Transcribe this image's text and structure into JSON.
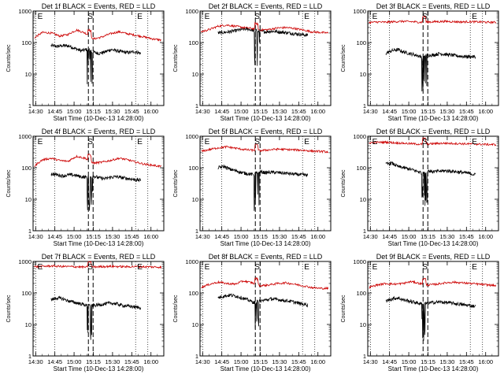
{
  "figure": {
    "x_tick_labels": [
      "14:30",
      "14:45",
      "15:00",
      "15:15",
      "15:30",
      "15:45",
      "16:00"
    ],
    "y_tick_labels": [
      "1",
      "10",
      "100",
      "1000"
    ]
  },
  "chart_data": [
    {
      "type": "line",
      "title": "Det 1f BLACK = Events, RED = LLD",
      "xlabel": "Start Time (10-Dec-13 14:28:00)",
      "ylabel": "Counts/sec",
      "ylog": true,
      "ylim": [
        1,
        1000
      ],
      "xlim": [
        "14:28",
        "16:10"
      ],
      "series": [
        {
          "color": "#000000",
          "values": [
            80,
            75,
            80,
            78,
            65,
            55,
            60,
            50,
            45,
            50,
            60,
            55,
            50,
            48,
            52,
            45
          ]
        },
        {
          "color": "#cc0000",
          "values": [
            140,
            210,
            200,
            160,
            180,
            250,
            200,
            130,
            150,
            190,
            220,
            190,
            170,
            150,
            130,
            120
          ]
        }
      ],
      "markers": {
        "S_x": "15:13",
        "F_x": "15:13",
        "E_left_x": "14:29",
        "E_right_x": "15:48"
      }
    },
    {
      "type": "line",
      "title": "Det 2f BLACK = Events, RED = LLD",
      "xlabel": "Start Time (10-Dec-13 14:28:00)",
      "ylabel": "Counts/sec",
      "ylog": true,
      "ylim": [
        1,
        1000
      ],
      "xlim": [
        "14:28",
        "16:10"
      ],
      "series": [
        {
          "color": "#000000",
          "values": [
            200,
            210,
            220,
            240,
            260,
            270,
            240,
            230,
            220,
            230,
            220,
            210,
            200,
            190,
            180,
            170
          ]
        },
        {
          "color": "#cc0000",
          "values": [
            220,
            260,
            330,
            360,
            330,
            300,
            280,
            250,
            260,
            290,
            300,
            280,
            250,
            220,
            210,
            200
          ]
        }
      ],
      "markers": {
        "S_x": "15:13",
        "F_x": "15:13",
        "E_left_x": "14:29",
        "E_right_x": "15:48"
      }
    },
    {
      "type": "line",
      "title": "Det 3f BLACK = Events, RED = LLD",
      "xlabel": "Start Time (10-Dec-13 14:28:00)",
      "ylabel": "Counts/sec",
      "ylog": true,
      "ylim": [
        1,
        1000
      ],
      "xlim": [
        "14:28",
        "16:10"
      ],
      "series": [
        {
          "color": "#000000",
          "values": [
            45,
            55,
            60,
            50,
            45,
            40,
            35,
            40,
            40,
            45,
            42,
            40,
            38,
            36,
            36,
            35
          ]
        },
        {
          "color": "#cc0000",
          "values": [
            430,
            450,
            440,
            460,
            470,
            460,
            440,
            450,
            460,
            470,
            460,
            450,
            460,
            450,
            440,
            440
          ]
        }
      ],
      "markers": {
        "S_x": "15:13",
        "F_x": "15:13",
        "E_left_x": "14:29",
        "E_right_x": "15:48"
      }
    },
    {
      "type": "line",
      "title": "Det 4f BLACK = Events, RED = LLD",
      "xlabel": "Start Time (10-Dec-13 14:28:00)",
      "ylabel": "Counts/sec",
      "ylog": true,
      "ylim": [
        1,
        1000
      ],
      "xlim": [
        "14:28",
        "16:10"
      ],
      "series": [
        {
          "color": "#000000",
          "values": [
            65,
            60,
            55,
            60,
            58,
            52,
            50,
            55,
            48,
            45,
            50,
            52,
            48,
            45,
            42,
            40
          ]
        },
        {
          "color": "#cc0000",
          "values": [
            110,
            180,
            200,
            170,
            160,
            230,
            200,
            140,
            150,
            170,
            200,
            180,
            150,
            130,
            120,
            110
          ]
        }
      ],
      "markers": {
        "S_x": "15:13",
        "F_x": "15:13",
        "E_left_x": "14:29",
        "E_right_x": "15:48"
      }
    },
    {
      "type": "line",
      "title": "Det 5f BLACK = Events, RED = LLD",
      "xlabel": "Start Time (10-Dec-13 14:28:00)",
      "ylabel": "Counts/sec",
      "ylog": true,
      "ylim": [
        1,
        1000
      ],
      "xlim": [
        "14:28",
        "16:10"
      ],
      "series": [
        {
          "color": "#000000",
          "values": [
            100,
            110,
            90,
            80,
            70,
            65,
            60,
            75,
            70,
            72,
            70,
            68,
            65,
            62,
            60,
            58
          ]
        },
        {
          "color": "#cc0000",
          "values": [
            330,
            380,
            430,
            460,
            420,
            380,
            360,
            350,
            370,
            390,
            380,
            370,
            360,
            340,
            330,
            320
          ]
        }
      ],
      "markers": {
        "S_x": "15:13",
        "F_x": "15:13",
        "E_left_x": "14:29",
        "E_right_x": "15:48"
      }
    },
    {
      "type": "line",
      "title": "Det 6f BLACK = Events, RED = LLD",
      "xlabel": "Start Time (10-Dec-13 14:28:00)",
      "ylabel": "Counts/sec",
      "ylog": true,
      "ylim": [
        1,
        1000
      ],
      "xlim": [
        "14:28",
        "16:10"
      ],
      "series": [
        {
          "color": "#000000",
          "values": [
            130,
            140,
            110,
            100,
            90,
            80,
            70,
            80,
            75,
            78,
            80,
            78,
            74,
            70,
            66,
            60
          ]
        },
        {
          "color": "#cc0000",
          "values": [
            620,
            640,
            650,
            620,
            600,
            580,
            560,
            570,
            590,
            600,
            590,
            580,
            570,
            560,
            550,
            540
          ]
        }
      ],
      "markers": {
        "S_x": "15:13",
        "F_x": "15:13",
        "E_left_x": "14:29",
        "E_right_x": "15:48"
      }
    },
    {
      "type": "line",
      "title": "Det 7f BLACK = Events, RED = LLD",
      "xlabel": "Start Time (10-Dec-13 14:28:00)",
      "ylabel": "Counts/sec",
      "ylog": true,
      "ylim": [
        1,
        1000
      ],
      "xlim": [
        "14:28",
        "16:10"
      ],
      "series": [
        {
          "color": "#000000",
          "values": [
            60,
            70,
            65,
            55,
            50,
            45,
            40,
            40,
            42,
            45,
            48,
            45,
            40,
            38,
            36,
            34
          ]
        },
        {
          "color": "#cc0000",
          "values": [
            680,
            700,
            720,
            700,
            690,
            680,
            660,
            670,
            690,
            700,
            690,
            680,
            690,
            680,
            670,
            660
          ]
        }
      ],
      "markers": {
        "S_x": "15:13",
        "F_x": "15:13",
        "E_left_x": "14:29",
        "E_right_x": "15:48"
      }
    },
    {
      "type": "line",
      "title": "Det 8f BLACK = Events, RED = LLD",
      "xlabel": "Start Time (10-Dec-13 14:28:00)",
      "ylabel": "Counts/sec",
      "ylog": true,
      "ylim": [
        1,
        1000
      ],
      "xlim": [
        "14:28",
        "16:10"
      ],
      "series": [
        {
          "color": "#000000",
          "values": [
            70,
            80,
            85,
            80,
            70,
            60,
            50,
            55,
            60,
            65,
            62,
            58,
            55,
            50,
            45,
            42
          ]
        },
        {
          "color": "#cc0000",
          "values": [
            150,
            190,
            220,
            200,
            190,
            240,
            210,
            170,
            180,
            200,
            210,
            190,
            170,
            150,
            140,
            140
          ]
        }
      ],
      "markers": {
        "S_x": "15:13",
        "F_x": "15:13",
        "E_left_x": "14:29",
        "E_right_x": "15:48"
      }
    },
    {
      "type": "line",
      "title": "Det 9f BLACK = Events, RED = LLD",
      "xlabel": "Start Time (10-Dec-13 14:28:00)",
      "ylabel": "Counts/sec",
      "ylog": true,
      "ylim": [
        1,
        1000
      ],
      "xlim": [
        "14:28",
        "16:10"
      ],
      "series": [
        {
          "color": "#000000",
          "values": [
            55,
            65,
            70,
            60,
            55,
            50,
            45,
            48,
            50,
            52,
            50,
            48,
            45,
            42,
            40,
            38
          ]
        },
        {
          "color": "#cc0000",
          "values": [
            150,
            180,
            200,
            190,
            200,
            230,
            200,
            180,
            190,
            210,
            220,
            210,
            200,
            190,
            180,
            170
          ]
        }
      ],
      "markers": {
        "S_x": "15:13",
        "F_x": "15:13",
        "E_left_x": "14:29",
        "E_right_x": "15:48"
      }
    }
  ]
}
